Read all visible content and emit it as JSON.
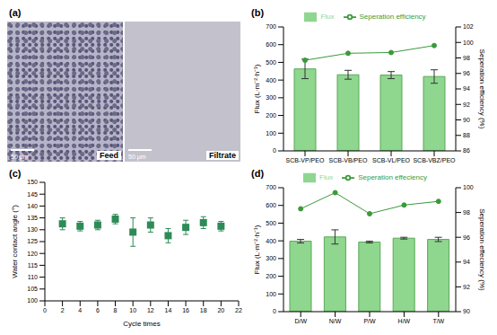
{
  "image_panel": {
    "title": "(a)",
    "images": [
      {
        "caption": "Feed",
        "scale_bar": "50 μm"
      },
      {
        "caption": "Filtrate",
        "scale_bar": "50 μm"
      }
    ]
  },
  "chart_data": [
    {
      "type": "bar",
      "title": "(b)",
      "categories": [
        "SCB-VP/PEO",
        "SCB-VB/PEO",
        "SCB-VL/PEO",
        "SCB-VBZ/PEO"
      ],
      "y_label": "Flux (L·m⁻²·h⁻¹)",
      "y2_label": "Seperation efficiency (%)",
      "ylim": [
        0,
        700
      ],
      "yticks": [
        0,
        100,
        200,
        300,
        400,
        500,
        600,
        700
      ],
      "y2lim": [
        86,
        102
      ],
      "y2ticks": [
        86,
        88,
        90,
        92,
        94,
        96,
        98,
        100,
        102
      ],
      "legend": "upper center",
      "series": [
        {
          "name": "Flux",
          "type": "bar",
          "color": "#8fd68f",
          "values": [
            463,
            430,
            428,
            420
          ],
          "errors": [
            55,
            25,
            20,
            38
          ]
        },
        {
          "name": "Seperation efficiency",
          "type": "line",
          "axis": "y2",
          "color": "#3a9a3a",
          "marker": "circle",
          "values": [
            97.7,
            98.6,
            98.7,
            99.6
          ]
        }
      ]
    },
    {
      "type": "scatter",
      "title": "(c)",
      "x_label": "Cycle times",
      "y_label": "Water contact angle (°)",
      "xlim": [
        0,
        22
      ],
      "xticks": [
        0,
        2,
        4,
        6,
        8,
        10,
        12,
        14,
        16,
        18,
        20,
        22
      ],
      "ylim": [
        100,
        150
      ],
      "yticks": [
        100,
        105,
        110,
        115,
        120,
        125,
        130,
        135,
        140,
        145,
        150
      ],
      "color": "#2e8b57",
      "marker": "square",
      "x": [
        2,
        4,
        6,
        8,
        10,
        12,
        14,
        16,
        18,
        20
      ],
      "values": [
        132.5,
        131.5,
        132,
        134.5,
        129,
        132,
        127.5,
        131,
        133,
        131.5
      ],
      "errors": [
        2.5,
        2,
        2,
        2,
        6,
        3,
        3,
        3,
        2.5,
        2
      ]
    },
    {
      "type": "bar",
      "title": "(d)",
      "categories": [
        "D/W",
        "N/W",
        "P/W",
        "H/W",
        "T/W"
      ],
      "y_label": "Flux (L·m⁻²·h⁻¹)",
      "y2_label": "Seperation effeciency (%)",
      "ylim": [
        0,
        700
      ],
      "yticks": [
        0,
        100,
        200,
        300,
        400,
        500,
        600,
        700
      ],
      "y2lim": [
        90,
        100
      ],
      "y2ticks": [
        90,
        92,
        94,
        96,
        98,
        100
      ],
      "legend": "upper center",
      "series": [
        {
          "name": "Flux",
          "type": "bar",
          "color": "#8fd68f",
          "values": [
            398,
            422,
            393,
            415,
            408
          ],
          "errors": [
            10,
            40,
            5,
            5,
            12
          ]
        },
        {
          "name": "Seperation effeciency",
          "type": "line",
          "axis": "y2",
          "color": "#3a9a3a",
          "marker": "circle",
          "values": [
            98.3,
            99.6,
            97.9,
            98.6,
            98.9
          ]
        }
      ]
    }
  ]
}
